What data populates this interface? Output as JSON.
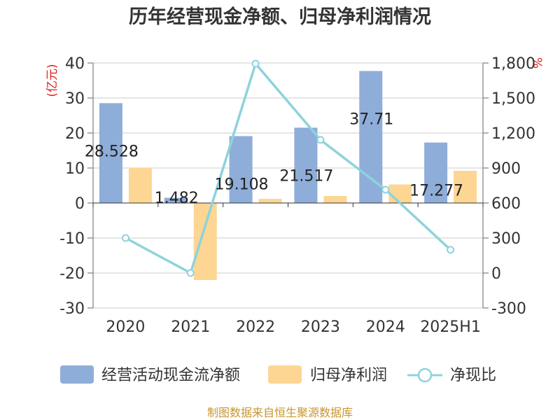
{
  "chart_data": {
    "type": "bar",
    "title": "历年经营现金净额、归母净利润情况",
    "left_unit": "(亿元)",
    "right_unit": "%",
    "categories": [
      "2020",
      "2021",
      "2022",
      "2023",
      "2024",
      "2025H1"
    ],
    "series": [
      {
        "name": "经营活动现金流净额",
        "kind": "bar",
        "axis": "left",
        "color": "#8eadd9",
        "values": [
          28.528,
          1.482,
          19.108,
          21.517,
          37.71,
          17.277
        ],
        "labels": [
          "28.528",
          "1.482",
          "19.108",
          "21.517",
          "37.71",
          "17.277"
        ]
      },
      {
        "name": "归母净利润",
        "kind": "bar",
        "axis": "left",
        "color": "#fdd693",
        "values": [
          10.0,
          -22.0,
          1.2,
          2.0,
          5.3,
          9.2
        ]
      },
      {
        "name": "净现比",
        "kind": "line",
        "axis": "right",
        "color": "#8dd3dc",
        "values": [
          300,
          0,
          1794,
          1141,
          714,
          199
        ]
      }
    ],
    "left_axis": {
      "min": -30,
      "max": 40,
      "ticks": [
        "40",
        "30",
        "20",
        "10",
        "0",
        "-10",
        "-20",
        "-30"
      ]
    },
    "right_axis": {
      "min": -300,
      "max": 1800,
      "ticks": [
        "1,800",
        "1,500",
        "1,200",
        "900",
        "600",
        "300",
        "0",
        "-300"
      ]
    },
    "grid": true,
    "legend_position": "bottom"
  },
  "source": "制图数据来自恒生聚源数据库"
}
